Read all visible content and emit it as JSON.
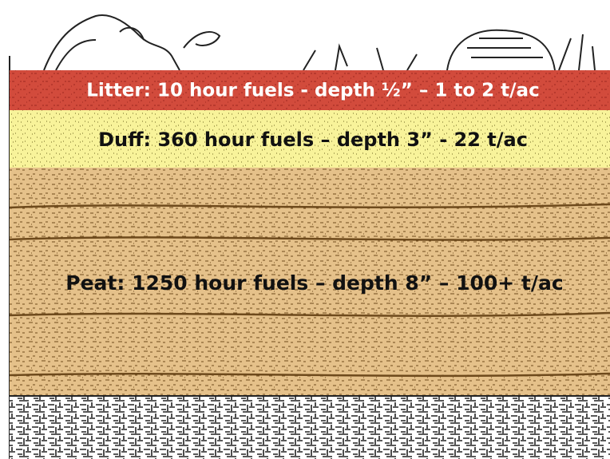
{
  "layers": [
    {
      "label": "Litter: 10 hour fuels - depth ½” – 1 to 2 t/ac"
    },
    {
      "label": "Duff: 360 hour fuels – depth 3” - 22 t/ac"
    },
    {
      "label": "Peat: 1250 hour fuels – depth 8” – 100+ t/ac"
    }
  ]
}
